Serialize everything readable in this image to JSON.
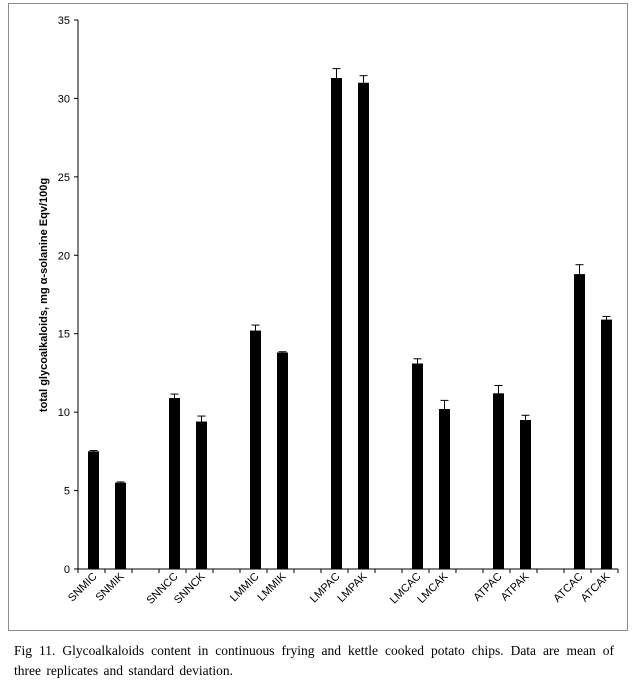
{
  "chart_data": {
    "type": "bar",
    "categories": [
      "SNMIC",
      "SNMIK",
      "SNNCC",
      "SNNCK",
      "LMMIC",
      "LMMIK",
      "LMPAC",
      "LMPAK",
      "LMCAC",
      "LMCAK",
      "ATPAC",
      "ATPAK",
      "ATCAC",
      "ATCAK"
    ],
    "values": [
      7.5,
      5.5,
      10.9,
      9.4,
      15.2,
      13.8,
      31.3,
      31.0,
      13.1,
      10.2,
      11.2,
      9.5,
      18.8,
      15.9
    ],
    "errors": [
      0.05,
      0.05,
      0.25,
      0.35,
      0.35,
      0.05,
      0.6,
      0.45,
      0.3,
      0.55,
      0.5,
      0.3,
      0.6,
      0.2
    ],
    "ylabel": "total glycoalkaloids,  mg α-solanine Eqv/100g",
    "xlabel": "",
    "ylim": [
      0,
      35
    ],
    "yticks": [
      0,
      5,
      10,
      15,
      20,
      25,
      30,
      35
    ],
    "grid": false,
    "bar_color": "#000000"
  },
  "caption": "Fig 11. Glycoalkaloids  content  in  continuous  frying  and kettle  cooked potato chips.  Data are mean  of three replicates  and standard  deviation."
}
